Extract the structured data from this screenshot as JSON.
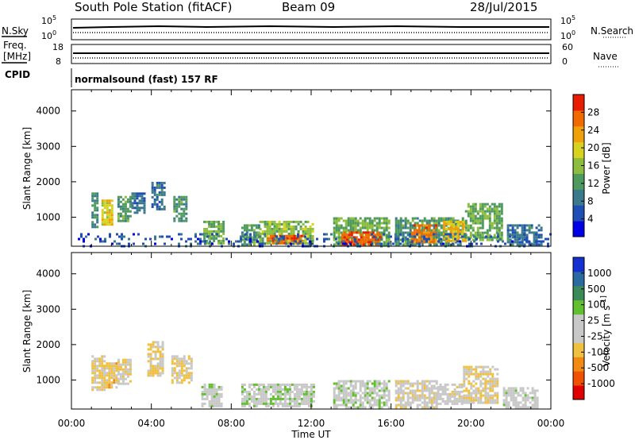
{
  "header": {
    "station": "South Pole Station (fitACF)",
    "beam": "Beam 09",
    "date": "28/Jul/2015"
  },
  "panels_top": {
    "nsky_label": "N.Sky",
    "nsky_ticks": [
      "10^5",
      "10^0"
    ],
    "nsearch_label": "N.Search",
    "nsearch_ticks": [
      "10^5",
      "10^0"
    ],
    "freq_label": "Freq.",
    "freq_unit": "[MHz]",
    "freq_ticks": [
      "18",
      "8"
    ],
    "nave_label": "Nave",
    "nave_ticks": [
      "60",
      "0"
    ],
    "cpid_label": "CPID",
    "cpid_text": "normalsound (fast) 157 RF"
  },
  "colors": {
    "power_scale": [
      "#0000e6",
      "#1f4fb4",
      "#3a7a8c",
      "#4e9a5e",
      "#8cbd3c",
      "#d6d21e",
      "#f0a10a",
      "#f06a00",
      "#e81c00"
    ],
    "velocity_scale": [
      "#e00000",
      "#f05000",
      "#f08a10",
      "#f0c040",
      "#c8c8c8",
      "#c8c8c8",
      "#60c030",
      "#3a8a5a",
      "#2a6aa0",
      "#1530d0"
    ]
  },
  "chart_data": [
    {
      "type": "heatmap",
      "panel": "power",
      "ylabel": "Slant Range [km]",
      "colorbar_label": "Power [dB]",
      "colorbar_ticks": [
        "28",
        "24",
        "20",
        "16",
        "12",
        "8",
        "4"
      ],
      "vlim": [
        0,
        32
      ],
      "ylim": [
        180,
        4600
      ],
      "yticks": [
        "4000",
        "3000",
        "2000",
        "1000"
      ],
      "ytick_values": [
        4000,
        3000,
        2000,
        1000
      ],
      "xlim_hours": [
        0,
        24
      ],
      "xtick_hours": [
        0,
        4,
        8,
        12,
        16,
        20,
        24
      ],
      "echo_regions": [
        {
          "t0": 1.0,
          "t1": 1.3,
          "r0": 700,
          "r1": 1700,
          "value": 10
        },
        {
          "t0": 1.5,
          "t1": 2.0,
          "r0": 800,
          "r1": 1500,
          "value": 20
        },
        {
          "t0": 2.3,
          "t1": 2.9,
          "r0": 900,
          "r1": 1600,
          "value": 12
        },
        {
          "t0": 3.0,
          "t1": 3.6,
          "r0": 1100,
          "r1": 1700,
          "value": 8
        },
        {
          "t0": 4.0,
          "t1": 4.6,
          "r0": 1200,
          "r1": 2000,
          "value": 8
        },
        {
          "t0": 5.1,
          "t1": 5.8,
          "r0": 900,
          "r1": 1600,
          "value": 12
        },
        {
          "t0": 6.6,
          "t1": 7.6,
          "r0": 250,
          "r1": 900,
          "value": 14
        },
        {
          "t0": 8.5,
          "t1": 9.4,
          "r0": 250,
          "r1": 800,
          "value": 12
        },
        {
          "t0": 9.4,
          "t1": 12.1,
          "r0": 250,
          "r1": 900,
          "value": 16
        },
        {
          "t0": 9.8,
          "t1": 11.6,
          "r0": 250,
          "r1": 500,
          "value": 28
        },
        {
          "t0": 13.1,
          "t1": 15.9,
          "r0": 250,
          "r1": 1000,
          "value": 14
        },
        {
          "t0": 13.5,
          "t1": 15.5,
          "r0": 250,
          "r1": 600,
          "value": 28
        },
        {
          "t0": 16.2,
          "t1": 19.6,
          "r0": 250,
          "r1": 1000,
          "value": 12
        },
        {
          "t0": 17.0,
          "t1": 18.2,
          "r0": 300,
          "r1": 800,
          "value": 26
        },
        {
          "t0": 18.6,
          "t1": 19.7,
          "r0": 300,
          "r1": 900,
          "value": 22
        },
        {
          "t0": 19.7,
          "t1": 21.5,
          "r0": 350,
          "r1": 1400,
          "value": 14
        },
        {
          "t0": 21.8,
          "t1": 23.5,
          "r0": 250,
          "r1": 800,
          "value": 8
        },
        {
          "t0": 0.2,
          "t1": 24.0,
          "r0": 180,
          "r1": 550,
          "value": 6
        }
      ]
    },
    {
      "type": "heatmap",
      "panel": "velocity",
      "ylabel": "Slant Range [km]",
      "colorbar_label": "Velocity [m s^-1]",
      "colorbar_ticks": [
        "1000",
        "500",
        "100",
        "25",
        "-25",
        "-100",
        "-500",
        "-1000"
      ],
      "vlim": [
        -1200,
        1200
      ],
      "ylim": [
        180,
        4600
      ],
      "yticks": [
        "4000",
        "3000",
        "2000",
        "1000"
      ],
      "ytick_values": [
        4000,
        3000,
        2000,
        1000
      ],
      "xlim_hours": [
        0,
        24
      ],
      "xtick_hours": [
        0,
        4,
        8,
        12,
        16,
        20,
        24
      ],
      "echo_regions": [
        {
          "t0": 1.0,
          "t1": 1.6,
          "r0": 700,
          "r1": 1700,
          "value": -200
        },
        {
          "t0": 1.6,
          "t1": 2.3,
          "r0": 800,
          "r1": 1500,
          "value": -300
        },
        {
          "t0": 2.3,
          "t1": 3.0,
          "r0": 900,
          "r1": 1600,
          "value": -150
        },
        {
          "t0": 3.8,
          "t1": 4.6,
          "r0": 1100,
          "r1": 2100,
          "value": -200
        },
        {
          "t0": 5.0,
          "t1": 6.0,
          "r0": 900,
          "r1": 1700,
          "value": -250
        },
        {
          "t0": 6.5,
          "t1": 7.5,
          "r0": 250,
          "r1": 900,
          "value": 80
        },
        {
          "t0": 8.5,
          "t1": 12.1,
          "r0": 250,
          "r1": 900,
          "value": 120
        },
        {
          "t0": 13.1,
          "t1": 15.9,
          "r0": 250,
          "r1": 1000,
          "value": 120
        },
        {
          "t0": 16.2,
          "t1": 18.3,
          "r0": 250,
          "r1": 1000,
          "value": -150
        },
        {
          "t0": 18.3,
          "t1": 19.6,
          "r0": 300,
          "r1": 900,
          "value": -80
        },
        {
          "t0": 19.6,
          "t1": 21.3,
          "r0": 350,
          "r1": 1400,
          "value": -200
        },
        {
          "t0": 21.6,
          "t1": 23.3,
          "r0": 250,
          "r1": 800,
          "value": 60
        }
      ]
    }
  ],
  "xaxis": {
    "ticks": [
      "00:00",
      "04:00",
      "08:00",
      "12:00",
      "16:00",
      "20:00",
      "00:00"
    ],
    "label": "Time UT"
  }
}
